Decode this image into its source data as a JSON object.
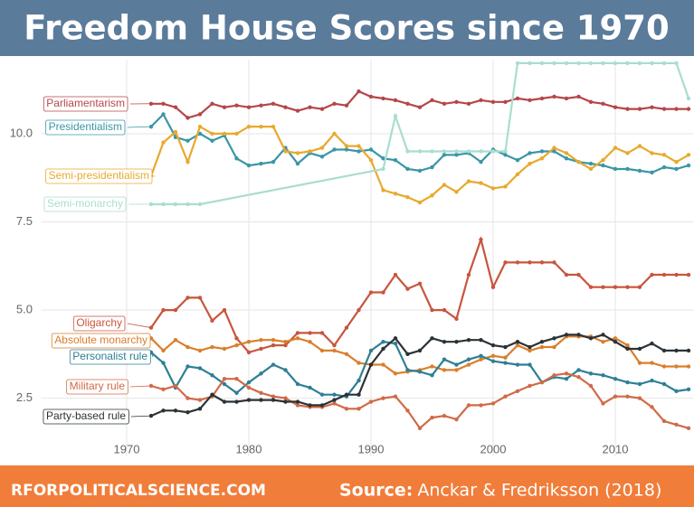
{
  "chart_data": {
    "type": "line",
    "title": "Freedom House Scores since 1970",
    "footer_site": "RFORPOLITICALSCIENCE.COM",
    "source_label": "Source:",
    "source_text": "Anckar & Fredriksson (2018)",
    "xlim": [
      1963,
      2016.4
    ],
    "ylim": [
      0.85,
      12.1
    ],
    "xticks": [
      1970,
      1980,
      1990,
      2000,
      2010
    ],
    "yticks": [
      {
        "value": 2.5,
        "label": "2.5"
      },
      {
        "value": 5,
        "label": "5.0"
      },
      {
        "value": 7.5,
        "label": "7.5"
      },
      {
        "value": 10,
        "label": "10.0"
      }
    ],
    "grid": true,
    "x": [
      1972,
      1973,
      1974,
      1975,
      1976,
      1977,
      1978,
      1979,
      1980,
      1981,
      1982,
      1983,
      1984,
      1985,
      1986,
      1987,
      1988,
      1989,
      1990,
      1991,
      1992,
      1993,
      1994,
      1995,
      1996,
      1997,
      1998,
      1999,
      2000,
      2001,
      2002,
      2003,
      2004,
      2005,
      2006,
      2007,
      2008,
      2009,
      2010,
      2011,
      2012,
      2013,
      2014,
      2015,
      2016
    ],
    "series": [
      {
        "name": "Parliamentarism",
        "color": "#b5464a",
        "values": [
          10.85,
          10.85,
          10.75,
          10.45,
          10.55,
          10.85,
          10.75,
          10.8,
          10.75,
          10.8,
          10.85,
          10.75,
          10.65,
          10.75,
          10.7,
          10.85,
          10.8,
          11.2,
          11.05,
          11.0,
          10.95,
          10.85,
          10.75,
          10.95,
          10.85,
          10.9,
          10.85,
          10.95,
          10.9,
          10.9,
          11.0,
          10.95,
          11.0,
          11.05,
          11.0,
          11.05,
          10.9,
          10.85,
          10.75,
          10.7,
          10.7,
          10.75,
          10.7,
          10.7,
          10.7
        ]
      },
      {
        "name": "Presidentialism",
        "color": "#3a96a6",
        "values": [
          10.2,
          10.55,
          9.9,
          9.8,
          10.0,
          9.8,
          9.95,
          9.3,
          9.1,
          9.15,
          9.2,
          9.6,
          9.15,
          9.45,
          9.35,
          9.55,
          9.55,
          9.5,
          9.55,
          9.3,
          9.25,
          9.0,
          8.95,
          9.05,
          9.4,
          9.4,
          9.45,
          9.2,
          9.55,
          9.4,
          9.25,
          9.45,
          9.5,
          9.5,
          9.3,
          9.2,
          9.15,
          9.1,
          9.0,
          9.0,
          8.95,
          8.9,
          9.05,
          9.0,
          9.1
        ]
      },
      {
        "name": "Semi-presidentialism",
        "color": "#e8a92d",
        "values": [
          8.8,
          9.75,
          10.05,
          9.2,
          10.2,
          10.0,
          10.0,
          10.0,
          10.2,
          10.2,
          10.2,
          9.5,
          9.45,
          9.5,
          9.6,
          10.0,
          9.65,
          9.65,
          9.25,
          8.4,
          8.3,
          8.2,
          8.05,
          8.25,
          8.55,
          8.35,
          8.65,
          8.6,
          8.45,
          8.5,
          8.85,
          9.15,
          9.3,
          9.6,
          9.45,
          9.2,
          9.0,
          9.25,
          9.6,
          9.45,
          9.65,
          9.45,
          9.4,
          9.2,
          9.4
        ]
      },
      {
        "name": "Semi-monarchy",
        "color": "#a9ddd0",
        "x": [
          1972,
          1973,
          1974,
          1975,
          1976,
          1991,
          1992,
          1993,
          1994,
          1995,
          1996,
          1997,
          1998,
          1999,
          2000,
          2001,
          2002,
          2003,
          2004,
          2005,
          2006,
          2007,
          2008,
          2009,
          2010,
          2011,
          2012,
          2013,
          2014,
          2015,
          2016
        ],
        "values": [
          8.0,
          8.0,
          8.0,
          8.0,
          8.0,
          9.0,
          10.5,
          9.5,
          9.5,
          9.5,
          9.5,
          9.5,
          9.5,
          9.5,
          9.5,
          9.5,
          12.0,
          12.0,
          12.0,
          12.0,
          12.0,
          12.0,
          12.0,
          12.0,
          12.0,
          12.0,
          12.0,
          12.0,
          12.0,
          12.0,
          11.0
        ]
      },
      {
        "name": "Oligarchy",
        "color": "#c8553d",
        "values": [
          4.5,
          5.0,
          5.0,
          5.35,
          5.35,
          4.7,
          5.0,
          4.2,
          3.8,
          3.9,
          4.0,
          4.0,
          4.35,
          4.35,
          4.35,
          4.0,
          4.5,
          5.0,
          5.5,
          5.5,
          6.0,
          5.6,
          5.75,
          5.0,
          5.0,
          4.75,
          6.0,
          7.0,
          5.65,
          6.35,
          6.35,
          6.35,
          6.35,
          6.35,
          6.0,
          6.0,
          5.65,
          5.65,
          5.65,
          5.65,
          5.65,
          6.0,
          6.0,
          6.0,
          6.0
        ]
      },
      {
        "name": "Absolute monarchy",
        "color": "#d97f2c",
        "values": [
          4.2,
          3.85,
          4.15,
          3.95,
          3.85,
          3.95,
          3.9,
          4.0,
          4.1,
          4.15,
          4.15,
          4.1,
          4.2,
          4.1,
          3.85,
          3.85,
          3.75,
          3.5,
          3.45,
          3.45,
          3.2,
          3.25,
          3.3,
          3.4,
          3.3,
          3.3,
          3.45,
          3.6,
          3.7,
          3.65,
          4.0,
          3.85,
          3.95,
          3.95,
          4.25,
          4.25,
          4.25,
          4.1,
          4.2,
          4.0,
          3.5,
          3.5,
          3.4,
          3.4,
          3.4
        ]
      },
      {
        "name": "Personalist rule",
        "color": "#2e7f95",
        "values": [
          3.8,
          3.5,
          2.8,
          3.4,
          3.35,
          3.15,
          2.9,
          2.65,
          2.95,
          3.2,
          3.45,
          3.3,
          2.9,
          2.8,
          2.6,
          2.6,
          2.55,
          3.0,
          3.85,
          4.1,
          4.05,
          3.3,
          3.25,
          3.15,
          3.6,
          3.45,
          3.6,
          3.7,
          3.55,
          3.5,
          3.45,
          3.45,
          2.95,
          3.1,
          3.05,
          3.3,
          3.2,
          3.15,
          3.05,
          2.95,
          2.9,
          3.0,
          2.9,
          2.7,
          2.75
        ]
      },
      {
        "name": "Military rule",
        "color": "#d16a48",
        "values": [
          2.85,
          2.75,
          2.85,
          2.5,
          2.45,
          2.55,
          3.05,
          3.05,
          2.8,
          2.65,
          2.55,
          2.5,
          2.3,
          2.25,
          2.25,
          2.35,
          2.2,
          2.2,
          2.4,
          2.5,
          2.55,
          2.15,
          1.65,
          1.95,
          2.0,
          1.9,
          2.3,
          2.3,
          2.35,
          2.55,
          2.7,
          2.85,
          2.95,
          3.15,
          3.2,
          3.1,
          2.85,
          2.35,
          2.55,
          2.55,
          2.5,
          2.25,
          1.85,
          1.75,
          1.65
        ]
      },
      {
        "name": "Party-based rule",
        "color": "#2b3236",
        "values": [
          2.0,
          2.15,
          2.15,
          2.1,
          2.2,
          2.6,
          2.4,
          2.4,
          2.45,
          2.45,
          2.45,
          2.4,
          2.4,
          2.3,
          2.3,
          2.45,
          2.6,
          2.6,
          3.45,
          3.9,
          4.2,
          3.75,
          3.85,
          4.2,
          4.1,
          4.1,
          4.15,
          4.15,
          4.0,
          3.95,
          4.1,
          3.95,
          4.1,
          4.2,
          4.3,
          4.3,
          4.2,
          4.3,
          4.1,
          3.9,
          3.9,
          4.05,
          3.85,
          3.85,
          3.85
        ]
      }
    ]
  }
}
